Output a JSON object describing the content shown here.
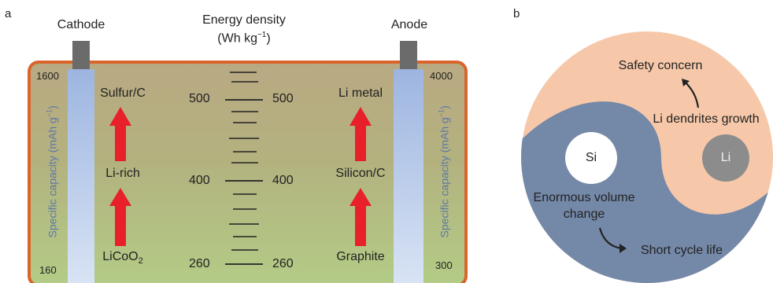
{
  "panel_a": {
    "letter": "a",
    "cathode_label": "Cathode",
    "anode_label": "Anode",
    "energy_title_line1": "Energy density",
    "energy_title_line2": "(Wh kg",
    "energy_title_sup": "−1",
    "energy_title_end": ")",
    "energy_ticks": [
      "500",
      "400",
      "260"
    ],
    "cathode_axis": {
      "label": "Specific capacity (mAh g",
      "sup": "−1",
      "end": ")",
      "max": "1600",
      "min": "160"
    },
    "anode_axis": {
      "label": "Specific capacity (mAh g",
      "sup": "−1",
      "end": ")",
      "max": "4000",
      "min": "300"
    },
    "cathode_materials": {
      "top": "Sulfur/C",
      "mid": "Li-rich",
      "bottom_main": "LiCoO",
      "bottom_sub": "2"
    },
    "anode_materials": {
      "top": "Li metal",
      "mid": "Silicon/C",
      "bottom": "Graphite"
    },
    "colors": {
      "frame": "#d9652c",
      "arrow": "#e8202a",
      "electrode": "#a6bde6",
      "terminal": "#6b6b6b"
    }
  },
  "panel_b": {
    "letter": "b",
    "safety": "Safety concern",
    "dendrites": "Li dendrites growth",
    "si": "Si",
    "li": "Li",
    "volume_line1": "Enormous volume",
    "volume_line2": "change",
    "cycle": "Short cycle life",
    "colors": {
      "light": "#f6c8a9",
      "dark": "#7488a8",
      "li_dot": "#8c8c8c"
    }
  }
}
